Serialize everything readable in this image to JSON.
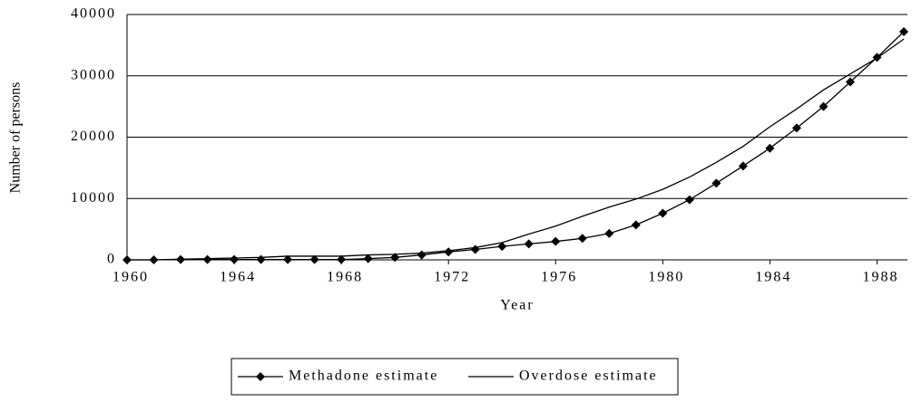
{
  "chart_data": {
    "type": "line",
    "xlabel": "Year",
    "ylabel": "Number of persons",
    "x": [
      1960,
      1961,
      1962,
      1963,
      1964,
      1965,
      1966,
      1967,
      1968,
      1969,
      1970,
      1971,
      1972,
      1973,
      1974,
      1975,
      1976,
      1977,
      1978,
      1979,
      1980,
      1981,
      1982,
      1983,
      1984,
      1985,
      1986,
      1987,
      1988,
      1989
    ],
    "series": [
      {
        "name": "Methadone estimate",
        "color": "#000000",
        "marker": "diamond",
        "values": [
          0,
          0,
          50,
          50,
          50,
          50,
          50,
          50,
          50,
          200,
          400,
          800,
          1300,
          1700,
          2200,
          2600,
          3000,
          3500,
          4300,
          5700,
          7600,
          9800,
          12500,
          15300,
          18200,
          21500,
          25000,
          29000,
          33000,
          37200
        ]
      },
      {
        "name": "Overdose estimate",
        "color": "#000000",
        "marker": "none",
        "values": [
          0,
          0,
          100,
          200,
          300,
          400,
          600,
          600,
          600,
          800,
          900,
          1100,
          1500,
          2000,
          2800,
          4200,
          5500,
          7100,
          8600,
          9900,
          11500,
          13500,
          15900,
          18500,
          21700,
          24600,
          27700,
          30300,
          32900,
          36000
        ]
      }
    ],
    "xlim": [
      1960,
      1989
    ],
    "xticks": [
      1960,
      1964,
      1968,
      1972,
      1976,
      1980,
      1984,
      1988
    ],
    "ylim": [
      0,
      40000
    ],
    "yticks": [
      0,
      10000,
      20000,
      30000,
      40000
    ],
    "grid": true,
    "legend": "bottom"
  }
}
